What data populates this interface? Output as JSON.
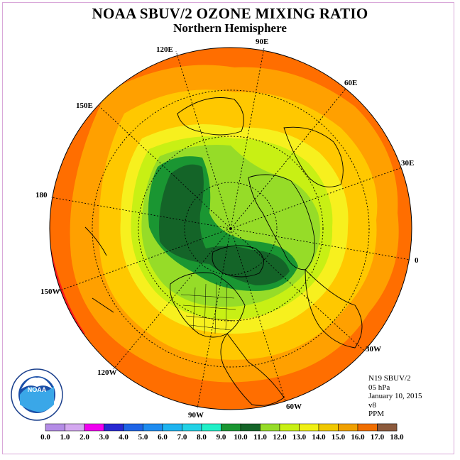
{
  "title": "NOAA SBUV/2 OZONE MIXING RATIO",
  "subtitle": "Northern Hemisphere",
  "longitude_labels": [
    "90E",
    "60E",
    "30E",
    "0",
    "30W",
    "60W",
    "90W",
    "120W",
    "150W",
    "180",
    "150E",
    "120E"
  ],
  "info": {
    "satellite": "N19 SBUV/2",
    "level": "05 hPa",
    "date": "January 10, 2015",
    "version": "v8",
    "units": "PPM"
  },
  "logo": {
    "text": "NOAA",
    "ring_text": "NATIONAL OCEANIC AND ATMOSPHERIC ADMINISTRATION · U.S. DEPARTMENT OF COMMERCE"
  },
  "colorbar": {
    "ticks": [
      "0.0",
      "1.0",
      "2.0",
      "3.0",
      "4.0",
      "5.0",
      "6.0",
      "7.0",
      "8.0",
      "9.0",
      "10.0",
      "11.0",
      "12.0",
      "13.0",
      "14.0",
      "15.0",
      "16.0",
      "17.0",
      "18.0"
    ],
    "colors": [
      "#b48ce6",
      "#d4a8f0",
      "#f000f0",
      "#2828d2",
      "#1e64e6",
      "#1e8cf0",
      "#1eb4f0",
      "#22d2e6",
      "#20f0c8",
      "#1a9632",
      "#146428",
      "#96dc28",
      "#c8f014",
      "#f0f014",
      "#f0c800",
      "#f0a000",
      "#f06e00",
      "#f01414",
      "#8c5a3c"
    ]
  },
  "map_colors": {
    "ring_outer": "#ff6e00",
    "ring_15": "#ffa000",
    "ring_14": "#ffc800",
    "ring_13": "#f7f01e",
    "ring_12": "#c8f014",
    "ring_11": "#96dc28",
    "ring_10": "#1a9632",
    "ring_9": "#146428",
    "edge_red": "#ff1a1a"
  }
}
